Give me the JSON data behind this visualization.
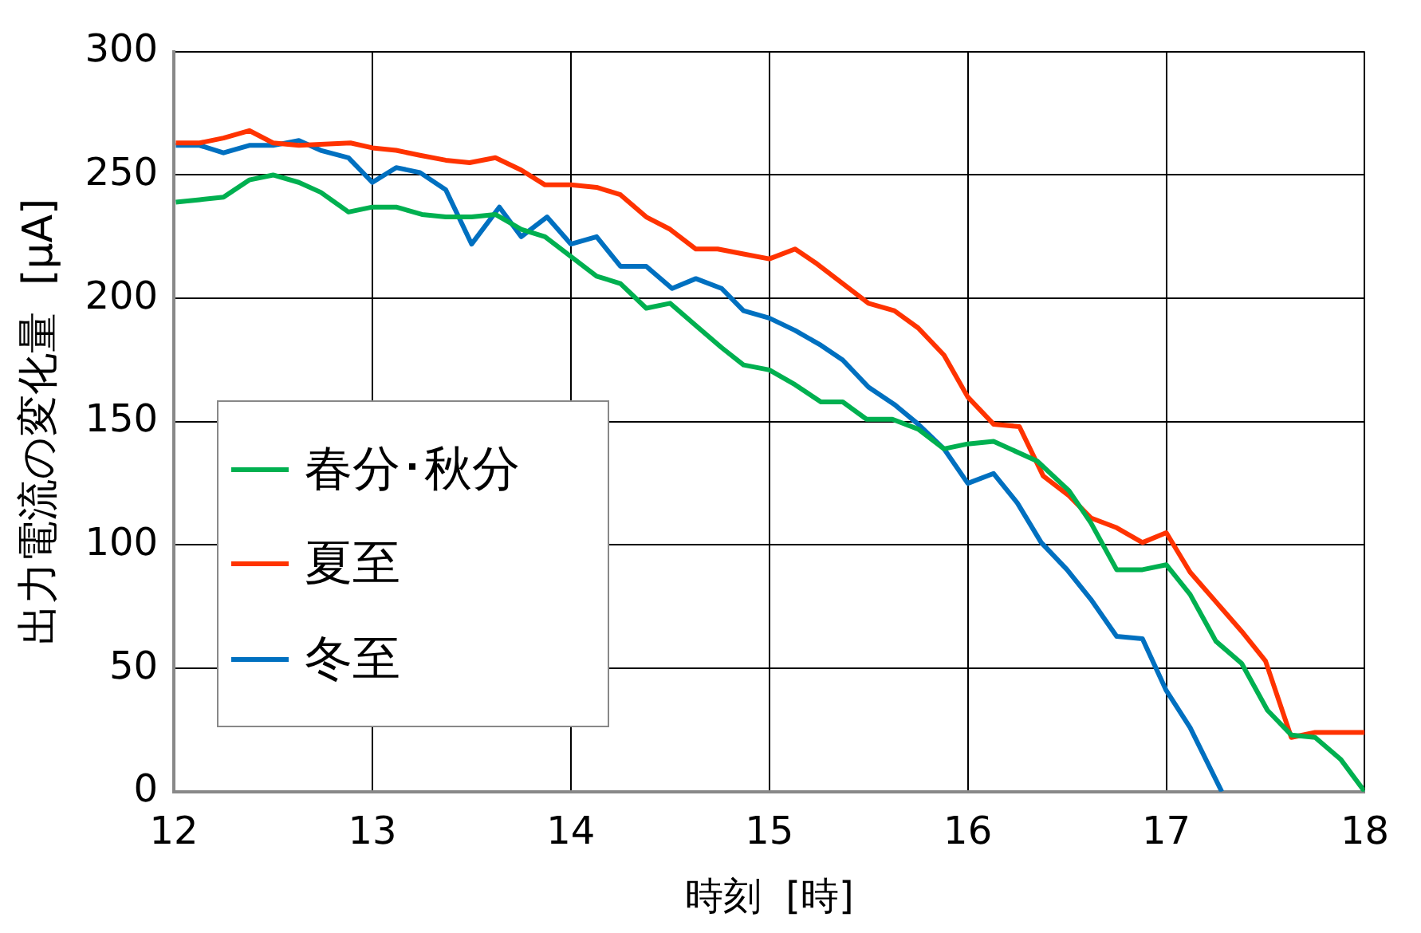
{
  "chart_data": {
    "type": "line",
    "xlabel": "時刻  [時]",
    "ylabel": "出力電流の変化量  [μA]",
    "xlim": [
      12,
      18
    ],
    "xticks": [
      12,
      13,
      14,
      15,
      16,
      17,
      18
    ],
    "ylim": [
      0,
      300
    ],
    "yticks": [
      0,
      50,
      100,
      150,
      200,
      250,
      300
    ],
    "grid": true,
    "legend": "bottom left",
    "marker": "none",
    "line_style": "solid",
    "series": [
      {
        "name": "春分･秋分",
        "color": "#00b050",
        "x": [
          12.01,
          12.13,
          12.25,
          12.38,
          12.5,
          12.63,
          12.74,
          12.88,
          13.0,
          13.12,
          13.25,
          13.37,
          13.5,
          13.62,
          13.75,
          13.87,
          14.0,
          14.13,
          14.25,
          14.38,
          14.5,
          14.63,
          14.76,
          14.87,
          15.0,
          15.13,
          15.26,
          15.37,
          15.49,
          15.62,
          15.75,
          15.88,
          16.0,
          16.13,
          16.35,
          16.51,
          16.62,
          16.75,
          16.88,
          17.0,
          17.12,
          17.25,
          17.38,
          17.51,
          17.63,
          17.75,
          17.88,
          18.0
        ],
        "values": [
          239,
          240,
          241,
          248,
          250,
          247,
          243,
          235,
          237,
          237,
          234,
          233,
          233,
          234,
          228,
          225,
          217,
          209,
          206,
          196,
          198,
          189,
          180,
          173,
          171,
          165,
          158,
          158,
          151,
          151,
          147,
          139,
          141,
          142,
          134,
          122,
          109,
          90,
          90,
          92,
          80,
          61,
          52,
          33,
          23,
          22,
          13,
          0
        ]
      },
      {
        "name": "夏至",
        "color": "#ff3300",
        "x": [
          12.01,
          12.13,
          12.25,
          12.38,
          12.5,
          12.63,
          12.89,
          13.0,
          13.12,
          13.24,
          13.37,
          13.49,
          13.62,
          13.75,
          13.87,
          14.0,
          14.13,
          14.25,
          14.38,
          14.5,
          14.63,
          14.74,
          14.87,
          15.0,
          15.13,
          15.24,
          15.37,
          15.5,
          15.63,
          15.75,
          15.88,
          16.0,
          16.13,
          16.26,
          16.38,
          16.51,
          16.62,
          16.75,
          16.88,
          17.0,
          17.12,
          17.25,
          17.38,
          17.5,
          17.63,
          17.75,
          18.0
        ],
        "values": [
          263,
          263,
          265,
          268,
          263,
          262,
          263,
          261,
          260,
          258,
          256,
          255,
          257,
          252,
          246,
          246,
          245,
          242,
          233,
          228,
          220,
          220,
          218,
          216,
          220,
          214,
          206,
          198,
          195,
          188,
          177,
          160,
          149,
          148,
          128,
          120,
          111,
          107,
          101,
          105,
          89,
          77,
          65,
          53,
          22,
          24,
          24
        ]
      },
      {
        "name": "冬至",
        "color": "#0070c0",
        "x": [
          12.01,
          12.13,
          12.25,
          12.38,
          12.5,
          12.63,
          12.74,
          12.88,
          13.0,
          13.12,
          13.24,
          13.37,
          13.5,
          13.64,
          13.75,
          13.88,
          14.0,
          14.13,
          14.25,
          14.38,
          14.51,
          14.63,
          14.76,
          14.87,
          15.0,
          15.13,
          15.26,
          15.37,
          15.5,
          15.63,
          15.75,
          15.88,
          16.0,
          16.13,
          16.25,
          16.37,
          16.5,
          16.62,
          16.75,
          16.88,
          17.0,
          17.12,
          17.28
        ],
        "values": [
          262,
          262,
          259,
          262,
          262,
          264,
          260,
          257,
          247,
          253,
          251,
          244,
          222,
          237,
          225,
          233,
          222,
          225,
          213,
          213,
          204,
          208,
          204,
          195,
          192,
          187,
          181,
          175,
          164,
          157,
          149,
          139,
          125,
          129,
          117,
          101,
          90,
          78,
          63,
          62,
          41,
          26,
          0
        ]
      }
    ]
  }
}
